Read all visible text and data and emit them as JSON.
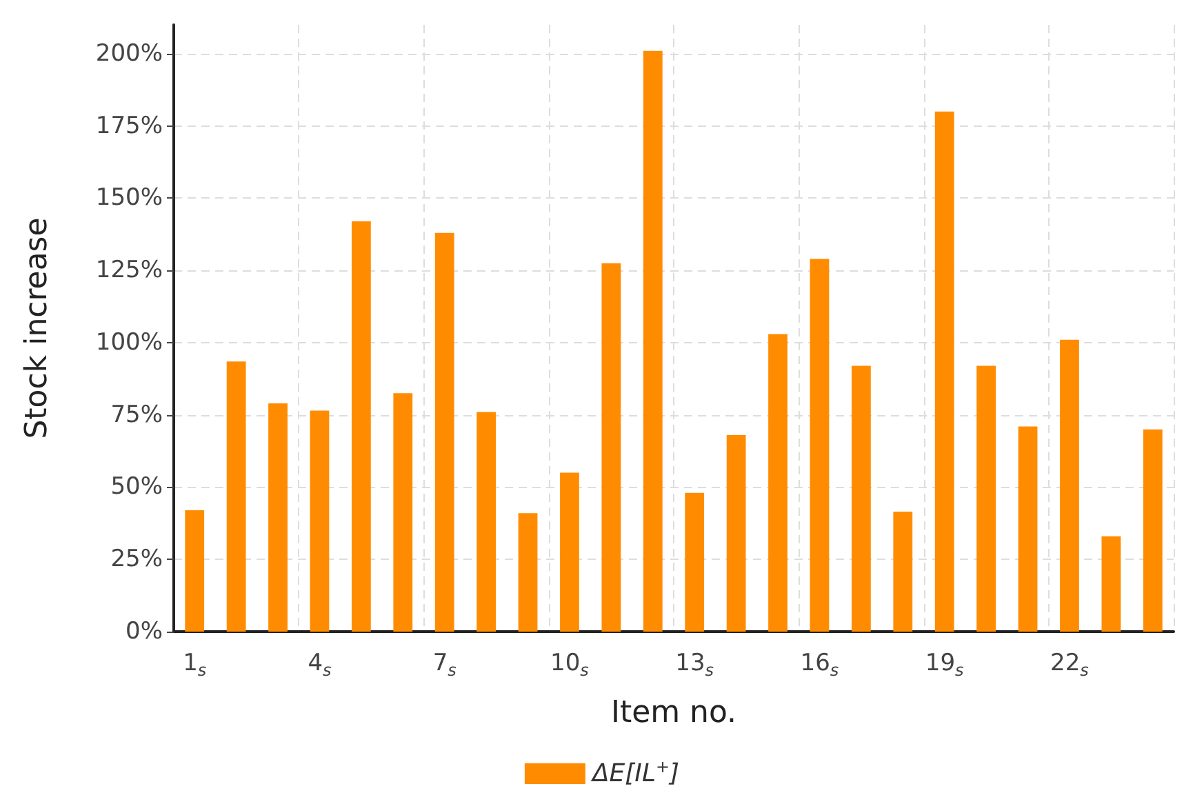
{
  "chart_data": {
    "type": "bar",
    "xlabel": "Item no.",
    "ylabel": "Stock increase",
    "categories": [
      "1$_{s}$",
      null,
      null,
      "4$_{s}$",
      null,
      null,
      "7$_{s}$",
      null,
      null,
      "10$_{s}$",
      null,
      null,
      "13$_{s}$",
      null,
      null,
      "16$_{s}$",
      null,
      null,
      "19$_{s}$",
      null,
      null,
      "22$_{s}$",
      null,
      null
    ],
    "series": [
      {
        "name": "ΔE[IL$^{+}$]",
        "color": "#ff8c00",
        "values": [
          42,
          93.5,
          79,
          76.5,
          142,
          82.5,
          138,
          76,
          41,
          55,
          127.5,
          201,
          48,
          68,
          103,
          129,
          92,
          41.5,
          180,
          92,
          71,
          101,
          33,
          70
        ]
      }
    ],
    "ylim": [
      0,
      210
    ],
    "yticks": [
      {
        "value": 0,
        "label": "0%"
      },
      {
        "value": 25,
        "label": "25%"
      },
      {
        "value": 50,
        "label": "50%"
      },
      {
        "value": 75,
        "label": "75%"
      },
      {
        "value": 100,
        "label": "100%"
      },
      {
        "value": 125,
        "label": "125%"
      },
      {
        "value": 150,
        "label": "150%"
      },
      {
        "value": 175,
        "label": "175%"
      },
      {
        "value": 200,
        "label": "200%"
      }
    ],
    "grid": true,
    "legend": "bottom"
  }
}
